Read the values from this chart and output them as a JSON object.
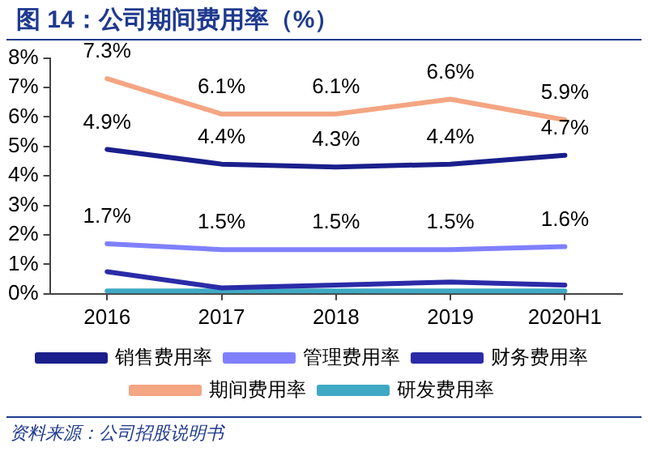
{
  "chart_data": {
    "type": "line",
    "title": "图 14：公司期间费用率（%）",
    "categories": [
      "2016",
      "2017",
      "2018",
      "2019",
      "2020H1"
    ],
    "series": [
      {
        "name": "销售费用率",
        "color": "#1a1f8c",
        "values": [
          4.9,
          4.4,
          4.3,
          4.4,
          4.7
        ],
        "value_labels": [
          "4.9%",
          "4.4%",
          "4.3%",
          "4.4%",
          "4.7%"
        ]
      },
      {
        "name": "管理费用率",
        "color": "#8080ff",
        "values": [
          1.7,
          1.5,
          1.5,
          1.5,
          1.6
        ],
        "value_labels": [
          "1.7%",
          "1.5%",
          "1.5%",
          "1.5%",
          "1.6%"
        ]
      },
      {
        "name": "财务费用率",
        "color": "#2b2ba8",
        "values": [
          0.75,
          0.2,
          0.3,
          0.4,
          0.3
        ]
      },
      {
        "name": "期间费用率",
        "color": "#f4a582",
        "values": [
          7.3,
          6.1,
          6.1,
          6.6,
          5.9
        ],
        "value_labels": [
          "7.3%",
          "6.1%",
          "6.1%",
          "6.6%",
          "5.9%"
        ]
      },
      {
        "name": "研发费用率",
        "color": "#3fa9c4",
        "values": [
          0.1,
          0.1,
          0.1,
          0.1,
          0.1
        ]
      }
    ],
    "ylim": [
      0,
      8
    ],
    "yticks": [
      {
        "value": 0,
        "label": "0%"
      },
      {
        "value": 1,
        "label": "1%"
      },
      {
        "value": 2,
        "label": "2%"
      },
      {
        "value": 3,
        "label": "3%"
      },
      {
        "value": 4,
        "label": "4%"
      },
      {
        "value": 5,
        "label": "5%"
      },
      {
        "value": 6,
        "label": "6%"
      },
      {
        "value": 7,
        "label": "7%"
      },
      {
        "value": 8,
        "label": "8%"
      }
    ],
    "grid": false,
    "legend": "bottom",
    "marker": "none",
    "line_style": "solid",
    "annotations": [
      "资料来源：公司招股说明书"
    ]
  }
}
